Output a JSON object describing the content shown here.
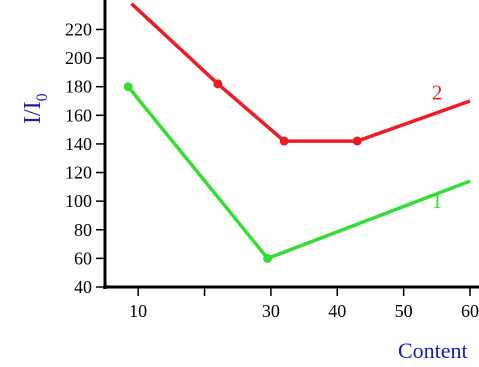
{
  "chart_data": {
    "type": "line",
    "xlabel": "Content",
    "ylabel": "I/I",
    "ylabel_subscript": "0",
    "xlim": [
      5,
      60
    ],
    "ylim": [
      40,
      235
    ],
    "x_ticks": [
      10,
      20,
      30,
      40,
      50,
      60
    ],
    "x_tick_labels": [
      "10",
      "",
      "30",
      "40",
      "50",
      "60"
    ],
    "y_ticks": [
      40,
      60,
      80,
      100,
      120,
      140,
      160,
      180,
      200,
      220
    ],
    "y_tick_labels": [
      "40",
      "60",
      "80",
      "100",
      "120",
      "140",
      "160",
      "180",
      "200",
      "220"
    ],
    "grid": false,
    "series": [
      {
        "name": "1",
        "color": "#33dd33",
        "points": [
          [
            8.5,
            180
          ],
          [
            29.5,
            60
          ]
        ],
        "line": [
          [
            8.5,
            180
          ],
          [
            29.5,
            60
          ],
          [
            60,
            114
          ]
        ],
        "label_at": [
          55,
          100
        ]
      },
      {
        "name": "2",
        "color": "#ee1c24",
        "points": [
          [
            22,
            182
          ],
          [
            32,
            142
          ],
          [
            43,
            142
          ]
        ],
        "line": [
          [
            9,
            238
          ],
          [
            22,
            182
          ],
          [
            32,
            142
          ],
          [
            43,
            142
          ],
          [
            60,
            170
          ]
        ],
        "label_at": [
          55,
          176
        ]
      }
    ]
  }
}
